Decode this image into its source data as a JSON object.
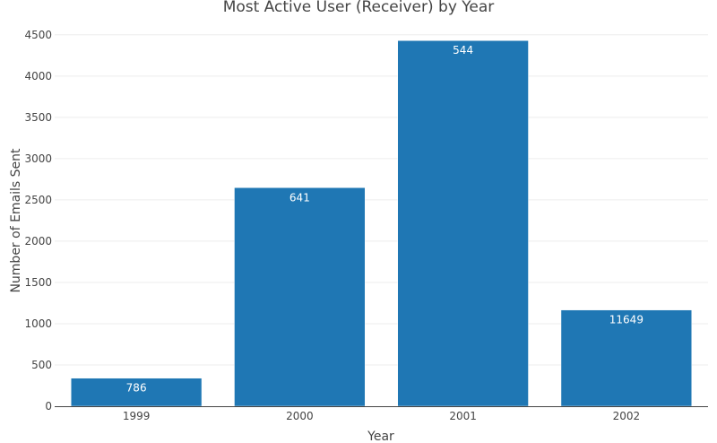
{
  "chart_data": {
    "type": "bar",
    "title": "Most Active User (Receiver) by Year",
    "xlabel": "Year",
    "ylabel": "Number of Emails Sent",
    "categories": [
      "1999",
      "2000",
      "2001",
      "2002"
    ],
    "values": [
      340,
      2648,
      4430,
      1166
    ],
    "bar_labels": [
      "786",
      "641",
      "544",
      "11649"
    ],
    "ylim": [
      0,
      4650
    ],
    "yticks": [
      0,
      500,
      1000,
      1500,
      2000,
      2500,
      3000,
      3500,
      4000,
      4500
    ],
    "grid": true,
    "bar_color": "#1f77b4"
  }
}
